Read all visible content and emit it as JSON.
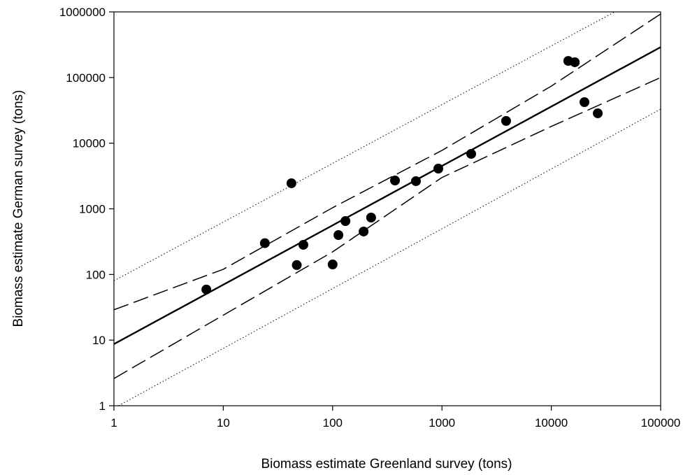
{
  "chart_data": {
    "type": "scatter",
    "xlabel": "Biomass estimate Greenland survey (tons)",
    "ylabel": "Biomass estimate German survey (tons)",
    "xscale": "log",
    "yscale": "log",
    "xlim": [
      1,
      100000
    ],
    "ylim": [
      1,
      1000000
    ],
    "xticks": [
      1,
      10,
      100,
      1000,
      10000,
      100000
    ],
    "yticks": [
      1,
      10,
      100,
      1000,
      10000,
      100000,
      1000000
    ],
    "points": {
      "color": "#000000",
      "x": [
        7,
        24,
        42,
        47,
        54,
        100,
        113,
        131,
        192,
        225,
        372,
        578,
        927,
        1850,
        3860,
        14300,
        16400,
        20100,
        26600
      ],
      "values": [
        59,
        300,
        2450,
        139,
        283,
        142,
        398,
        651,
        451,
        736,
        2700,
        2640,
        4100,
        6870,
        21800,
        179000,
        171000,
        42200,
        28500
      ]
    },
    "lines": [
      {
        "style": "solid",
        "color": "#000000",
        "x": [
          1,
          100000
        ],
        "values": [
          8.7,
          290000
        ]
      },
      {
        "style": "dashed",
        "color": "#000000",
        "x": [
          1,
          10,
          100,
          1000,
          10000,
          100000
        ],
        "values": [
          29,
          120,
          1040,
          7760,
          74000,
          930000
        ]
      },
      {
        "style": "dashed",
        "color": "#000000",
        "x": [
          1,
          10,
          100,
          1000,
          10000,
          100000
        ],
        "values": [
          2.6,
          24,
          221,
          3000,
          18000,
          100000
        ]
      },
      {
        "style": "dotted",
        "color": "#000000",
        "x": [
          1,
          38000
        ],
        "values": [
          80,
          1000000
        ]
      },
      {
        "style": "dotted",
        "color": "#000000",
        "x": [
          1.1,
          100000
        ],
        "values": [
          1,
          33000
        ]
      }
    ]
  }
}
